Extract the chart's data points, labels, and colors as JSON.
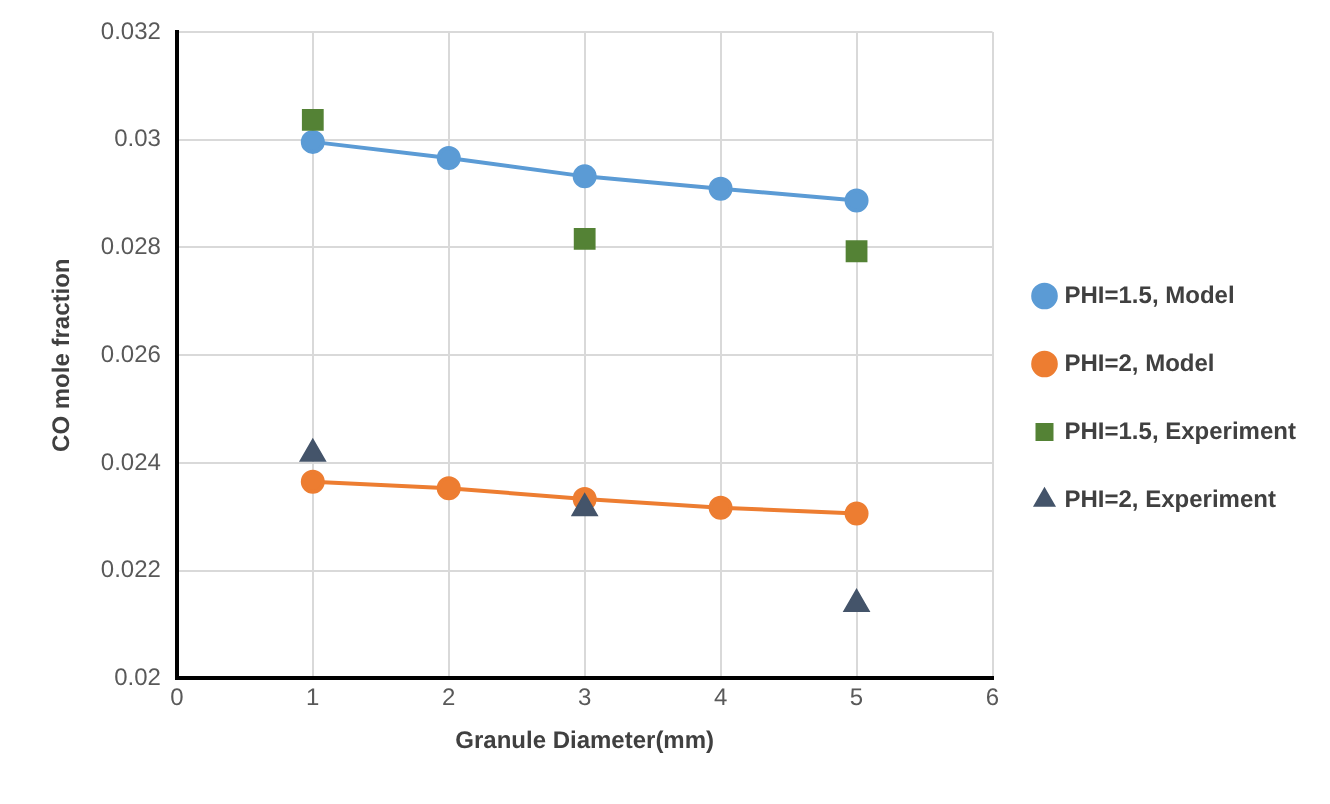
{
  "chart_data": {
    "type": "line",
    "xlabel": "Granule Diameter(mm)",
    "ylabel": "CO mole fraction",
    "x": [
      1,
      2,
      3,
      4,
      5
    ],
    "series": [
      {
        "name": "PHI=1.5, Model",
        "marker": "circle",
        "color": "#5b9bd5",
        "values": [
          0.02996,
          0.02966,
          0.02932,
          0.02909,
          0.02887
        ]
      },
      {
        "name": "PHI=2, Model",
        "marker": "circle",
        "color": "#ed7d31",
        "values": [
          0.02365,
          0.02353,
          0.02333,
          0.02317,
          0.02306
        ]
      },
      {
        "name": "PHI=1.5, Experiment",
        "type": "scatter",
        "marker": "square",
        "color": "#548235",
        "x": [
          1,
          3,
          5
        ],
        "values": [
          0.03037,
          0.02816,
          0.02793
        ]
      },
      {
        "name": "PHI=2, Experiment",
        "type": "scatter",
        "marker": "triangle",
        "color": "#44546a",
        "x": [
          1,
          3,
          5
        ],
        "values": [
          0.02417,
          0.02316,
          0.02138
        ]
      }
    ],
    "xlim": [
      0,
      6
    ],
    "xticks": [
      0,
      1,
      2,
      3,
      4,
      5,
      6
    ],
    "ylim": [
      0.02,
      0.032
    ],
    "yticks": [
      0.02,
      0.022,
      0.024,
      0.026,
      0.028,
      0.03,
      0.032
    ],
    "grid": true,
    "legend": "right"
  }
}
